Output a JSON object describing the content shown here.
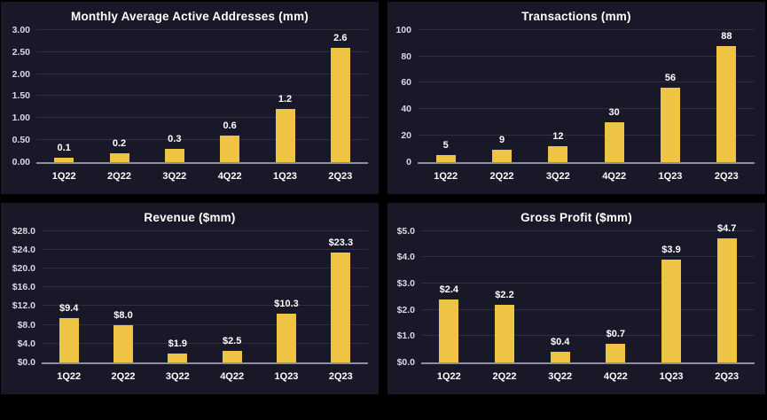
{
  "theme": {
    "background": "#000000",
    "panel_bg": "#181829",
    "bar_color": "#efc343",
    "title_color": "#ffffff",
    "tick_color": "#d9d9e3",
    "label_color": "#ffffff",
    "baseline_color": "#8f8f9e",
    "gridline_color": "rgba(255,255,255,0.10)"
  },
  "chart_data": [
    {
      "id": "active-addresses",
      "type": "bar",
      "title": "Monthly Average Active Addresses (mm)",
      "categories": [
        "1Q22",
        "2Q22",
        "3Q22",
        "4Q22",
        "1Q23",
        "2Q23"
      ],
      "values": [
        0.1,
        0.2,
        0.3,
        0.6,
        1.2,
        2.6
      ],
      "labels": [
        "0.1",
        "0.2",
        "0.3",
        "0.6",
        "1.2",
        "2.6"
      ],
      "tick_values": [
        0,
        0.5,
        1.0,
        1.5,
        2.0,
        2.5,
        3.0
      ],
      "tick_labels": [
        "0.00",
        "0.50",
        "1.00",
        "1.50",
        "2.00",
        "2.50",
        "3.00"
      ],
      "ylim": [
        0,
        3.0
      ],
      "xlabel": "",
      "ylabel": "",
      "grid": true,
      "legend": false
    },
    {
      "id": "transactions",
      "type": "bar",
      "title": "Transactions (mm)",
      "categories": [
        "1Q22",
        "2Q22",
        "3Q22",
        "4Q22",
        "1Q23",
        "2Q23"
      ],
      "values": [
        5,
        9,
        12,
        30,
        56,
        88
      ],
      "labels": [
        "5",
        "9",
        "12",
        "30",
        "56",
        "88"
      ],
      "tick_values": [
        0,
        20,
        40,
        60,
        80,
        100
      ],
      "tick_labels": [
        "0",
        "20",
        "40",
        "60",
        "80",
        "100"
      ],
      "ylim": [
        0,
        100
      ],
      "xlabel": "",
      "ylabel": "",
      "grid": true,
      "legend": false
    },
    {
      "id": "revenue",
      "type": "bar",
      "title": "Revenue ($mm)",
      "categories": [
        "1Q22",
        "2Q22",
        "3Q22",
        "4Q22",
        "1Q23",
        "2Q23"
      ],
      "values": [
        9.4,
        8.0,
        1.9,
        2.5,
        10.3,
        23.3
      ],
      "labels": [
        "$9.4",
        "$8.0",
        "$1.9",
        "$2.5",
        "$10.3",
        "$23.3"
      ],
      "tick_values": [
        0,
        4,
        8,
        12,
        16,
        20,
        24,
        28
      ],
      "tick_labels": [
        "$0.0",
        "$4.0",
        "$8.0",
        "$12.0",
        "$16.0",
        "$20.0",
        "$24.0",
        "$28.0"
      ],
      "ylim": [
        0,
        28
      ],
      "xlabel": "",
      "ylabel": "",
      "grid": true,
      "legend": false
    },
    {
      "id": "gross-profit",
      "type": "bar",
      "title": "Gross Profit ($mm)",
      "categories": [
        "1Q22",
        "2Q22",
        "3Q22",
        "4Q22",
        "1Q23",
        "2Q23"
      ],
      "values": [
        2.4,
        2.2,
        0.4,
        0.7,
        3.9,
        4.7
      ],
      "labels": [
        "$2.4",
        "$2.2",
        "$0.4",
        "$0.7",
        "$3.9",
        "$4.7"
      ],
      "tick_values": [
        0,
        1,
        2,
        3,
        4,
        5
      ],
      "tick_labels": [
        "$0.0",
        "$1.0",
        "$2.0",
        "$3.0",
        "$4.0",
        "$5.0"
      ],
      "ylim": [
        0,
        5
      ],
      "xlabel": "",
      "ylabel": "",
      "grid": true,
      "legend": false
    }
  ]
}
